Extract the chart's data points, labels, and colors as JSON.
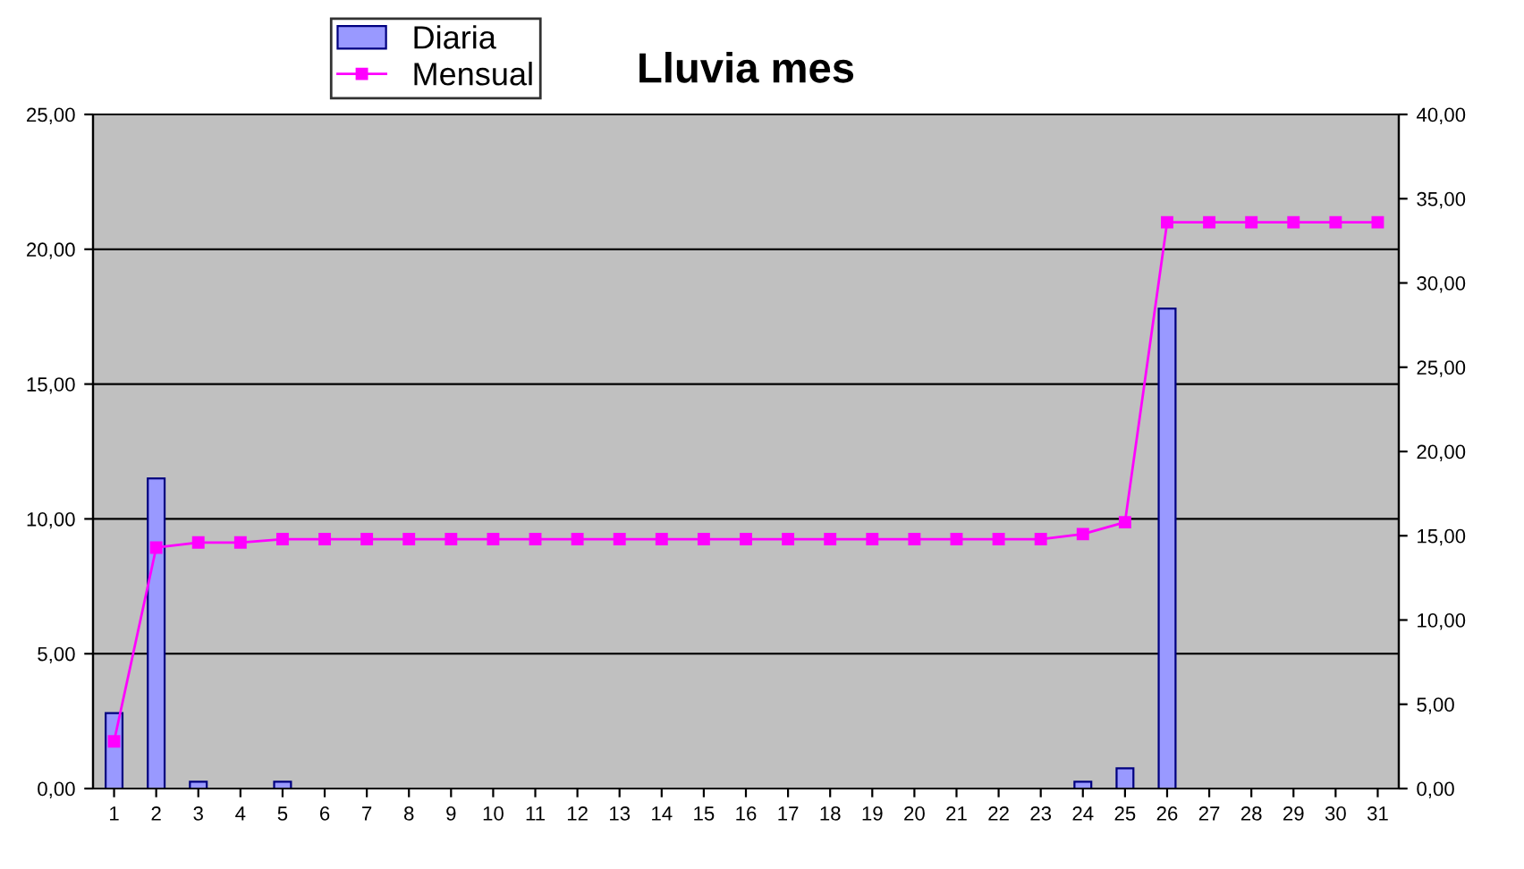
{
  "chart_data": {
    "type": "bar",
    "title": "Lluvia mes",
    "categories": [
      "1",
      "2",
      "3",
      "4",
      "5",
      "6",
      "7",
      "8",
      "9",
      "10",
      "11",
      "12",
      "13",
      "14",
      "15",
      "16",
      "17",
      "18",
      "19",
      "20",
      "21",
      "22",
      "23",
      "24",
      "25",
      "26",
      "27",
      "28",
      "29",
      "30",
      "31"
    ],
    "series": [
      {
        "name": "Diaria",
        "color": "#9999ff",
        "values": [
          2.8,
          11.5,
          0.25,
          null,
          0.25,
          null,
          null,
          null,
          null,
          null,
          null,
          null,
          null,
          null,
          null,
          null,
          null,
          null,
          null,
          null,
          null,
          null,
          null,
          0.25,
          0.75,
          17.8,
          null,
          null,
          null,
          null,
          null
        ]
      },
      {
        "name": "Mensual",
        "type": "line",
        "axis": "y2",
        "color": "#ff00ff",
        "marker": "square",
        "line_style": "solid",
        "values": [
          2.8,
          14.3,
          14.6,
          14.6,
          14.8,
          14.8,
          14.8,
          14.8,
          14.8,
          14.8,
          14.8,
          14.8,
          14.8,
          14.8,
          14.8,
          14.8,
          14.8,
          14.8,
          14.8,
          14.8,
          14.8,
          14.8,
          14.8,
          15.1,
          15.8,
          33.6,
          33.6,
          33.6,
          33.6,
          33.6,
          33.6
        ]
      }
    ],
    "ylim": [
      0,
      25
    ],
    "yticks": [
      {
        "value": 0,
        "label": "0,00"
      },
      {
        "value": 5,
        "label": "5,00"
      },
      {
        "value": 10,
        "label": "10,00"
      },
      {
        "value": 15,
        "label": "15,00"
      },
      {
        "value": 20,
        "label": "20,00"
      },
      {
        "value": 25,
        "label": "25,00"
      }
    ],
    "y2lim": [
      0,
      40
    ],
    "y2ticks": [
      {
        "value": 0,
        "label": "0,00"
      },
      {
        "value": 5,
        "label": "5,00"
      },
      {
        "value": 10,
        "label": "10,00"
      },
      {
        "value": 15,
        "label": "15,00"
      },
      {
        "value": 20,
        "label": "20,00"
      },
      {
        "value": 25,
        "label": "25,00"
      },
      {
        "value": 30,
        "label": "30,00"
      },
      {
        "value": 35,
        "label": "35,00"
      },
      {
        "value": 40,
        "label": "40,00"
      }
    ],
    "grid": "y",
    "legend": "top left"
  }
}
